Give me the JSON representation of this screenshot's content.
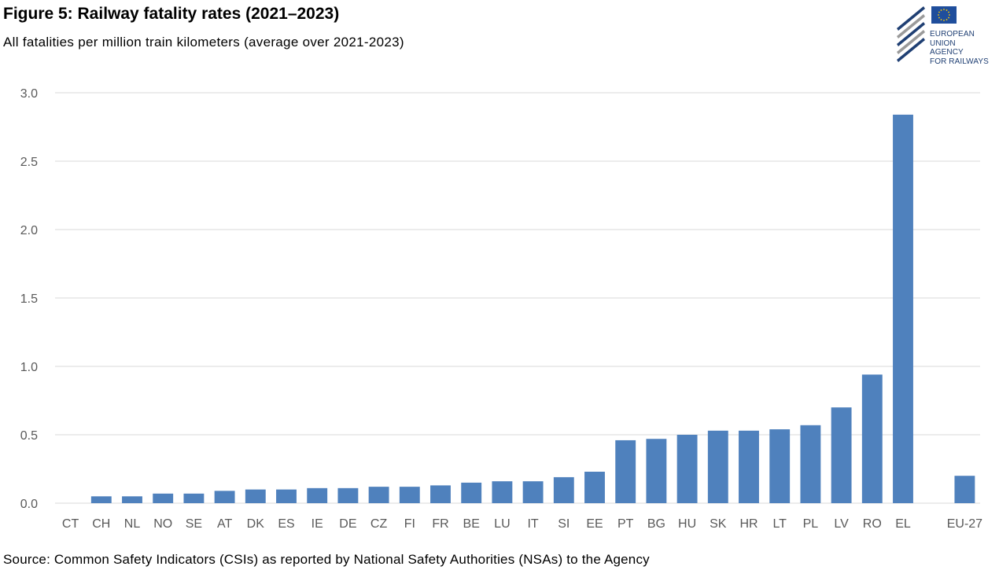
{
  "header": {
    "title": "Figure 5: Railway fatality rates (2021–2023)",
    "subtitle": "All fatalities per million train kilometers (average over 2021-2023)"
  },
  "footer": {
    "source": "Source: Common Safety Indicators (CSIs) as reported by National Safety Authorities (NSAs) to the Agency"
  },
  "logo": {
    "line1": "EUROPEAN",
    "line2": "UNION",
    "line3": "AGENCY",
    "line4": "FOR RAILWAYS",
    "flag_color": "#1f4e9c",
    "star_color": "#ffcc00",
    "stripe_color_dark": "#1f3f73",
    "stripe_color_light": "#9a9a9a"
  },
  "chart_data": {
    "type": "bar",
    "title": "Figure 5: Railway fatality rates (2021–2023)",
    "subtitle": "All fatalities per million train kilometers (average over 2021-2023)",
    "xlabel": "",
    "ylabel": "",
    "ylim": [
      0,
      3.0
    ],
    "yticks": [
      0.0,
      0.5,
      1.0,
      1.5,
      2.0,
      2.5,
      3.0
    ],
    "ytick_labels": [
      "0.0",
      "0.5",
      "1.0",
      "1.5",
      "2.0",
      "2.5",
      "3.0"
    ],
    "grid": true,
    "bar_color": "#4f81bd",
    "gridline_color": "#d9d9d9",
    "categories": [
      "CT",
      "CH",
      "NL",
      "NO",
      "SE",
      "AT",
      "DK",
      "ES",
      "IE",
      "DE",
      "CZ",
      "FI",
      "FR",
      "BE",
      "LU",
      "IT",
      "SI",
      "EE",
      "PT",
      "BG",
      "HU",
      "SK",
      "HR",
      "LT",
      "PL",
      "LV",
      "RO",
      "EL",
      "",
      "EU-27"
    ],
    "values": [
      0.0,
      0.05,
      0.05,
      0.07,
      0.07,
      0.09,
      0.1,
      0.1,
      0.11,
      0.11,
      0.12,
      0.12,
      0.13,
      0.15,
      0.16,
      0.16,
      0.19,
      0.23,
      0.46,
      0.47,
      0.5,
      0.53,
      0.53,
      0.54,
      0.57,
      0.7,
      0.94,
      2.84,
      null,
      0.2
    ]
  }
}
